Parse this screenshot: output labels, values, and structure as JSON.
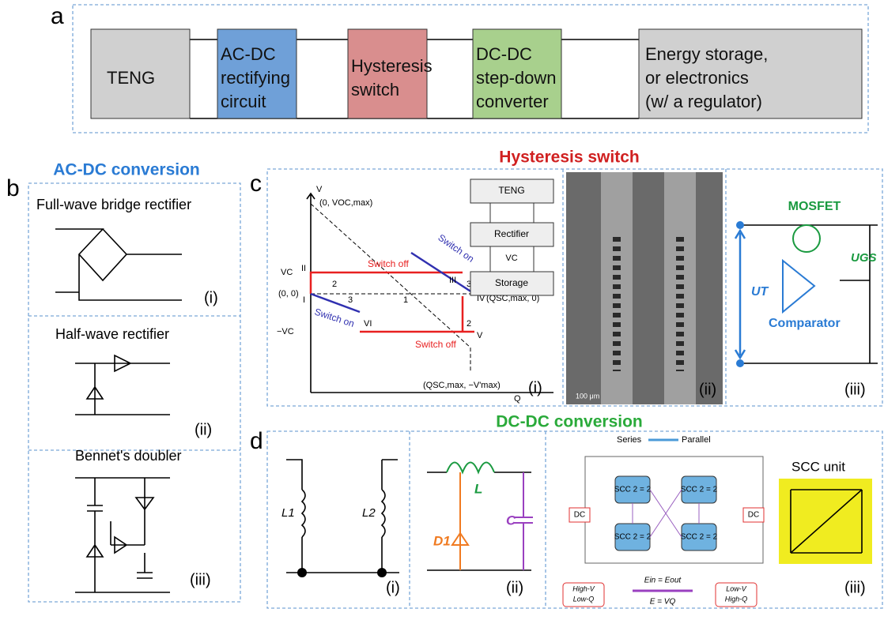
{
  "panel_a": {
    "label": "a",
    "blocks": [
      {
        "lines": [
          "TENG"
        ]
      },
      {
        "lines": [
          "AC-DC",
          "rectifying",
          "circuit"
        ]
      },
      {
        "lines": [
          "Hysteresis",
          "switch"
        ]
      },
      {
        "lines": [
          "DC-DC",
          "step-down",
          "converter"
        ]
      },
      {
        "lines": [
          "Energy storage,",
          "or electronics",
          "(w/ a regulator)"
        ]
      }
    ]
  },
  "panel_b": {
    "label": "b",
    "title": "AC-DC conversion",
    "items": [
      {
        "name": "Full-wave bridge rectifier",
        "tag": "(i)"
      },
      {
        "name": "Half-wave rectifier",
        "tag": "(ii)"
      },
      {
        "name": "Bennet's doubler",
        "tag": "(iii)"
      }
    ]
  },
  "panel_c": {
    "label": "c",
    "title": "Hysteresis switch",
    "plot": {
      "v_axis": "V",
      "q_axis": "Q",
      "top_point": "(0, VOC,max)",
      "vc": "VC",
      "origin": "(0, 0)",
      "neg_vc": "−VC",
      "switch_off_1": "Switch off",
      "switch_on_1": "Switch on",
      "switch_on_2": "Switch on",
      "switch_off_2": "Switch off",
      "points": [
        "I",
        "II",
        "III",
        "IV",
        "V",
        "VI"
      ],
      "regions": [
        "2",
        "3",
        "1",
        "3",
        "2"
      ],
      "qsc_point": "(QSC,max, 0)",
      "bottom_point": "(QSC,max, −V'max)",
      "tag": "(i)"
    },
    "schematic": {
      "teng": "TENG",
      "rectifier": "Rectifier",
      "vc": "VC",
      "storage": "Storage"
    },
    "image": {
      "scale": "100 μm",
      "tag": "(ii)"
    },
    "circuit": {
      "mosfet": "MOSFET",
      "ugs": "UGS",
      "ut": "UT",
      "comparator": "Comparator",
      "tag": "(iii)"
    }
  },
  "panel_d": {
    "label": "d",
    "title": "DC-DC conversion",
    "i": {
      "l1": "L1",
      "l2": "L2",
      "tag": "(i)"
    },
    "ii": {
      "l": "L",
      "d1": "D1",
      "c": "C",
      "tag": "(ii)"
    },
    "iii": {
      "series": "Series",
      "parallel": "Parallel",
      "dc": "DC",
      "scc": "SCC 2 = 2",
      "high_v": "High-V",
      "low_q": "Low-Q",
      "ein": "Ein = Eout",
      "e": "E = VQ",
      "low_v": "Low-V",
      "high_q": "High-Q",
      "unit": "SCC unit",
      "tag": "(iii)"
    }
  }
}
